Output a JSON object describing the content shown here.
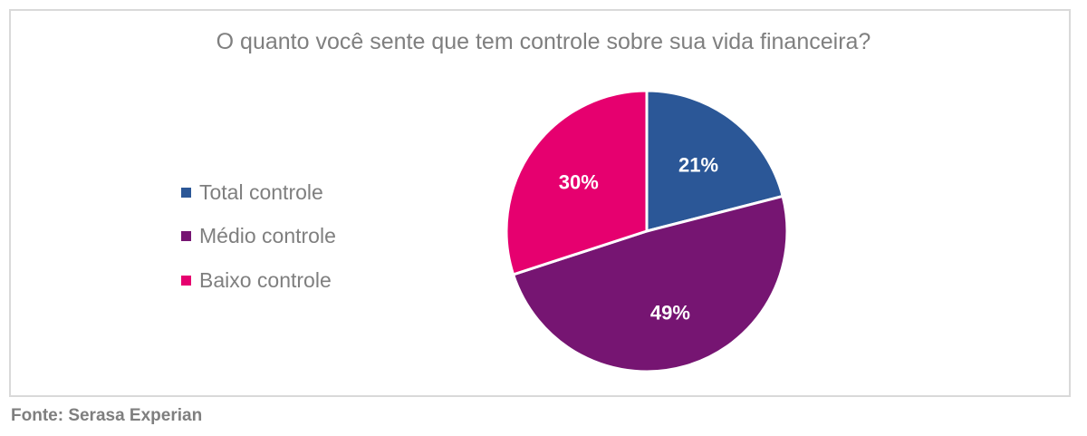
{
  "chart_data": {
    "type": "pie",
    "title": "O quanto você sente que tem controle sobre sua vida financeira?",
    "categories": [
      "Total controle",
      "Médio controle",
      "Baixo controle"
    ],
    "values": [
      21,
      49,
      30
    ],
    "labels": [
      "21%",
      "49%",
      "30%"
    ],
    "colors": [
      "#2B5797",
      "#761572",
      "#E6006F"
    ],
    "legend_placement": "left"
  },
  "source": "Fonte: Serasa Experian"
}
